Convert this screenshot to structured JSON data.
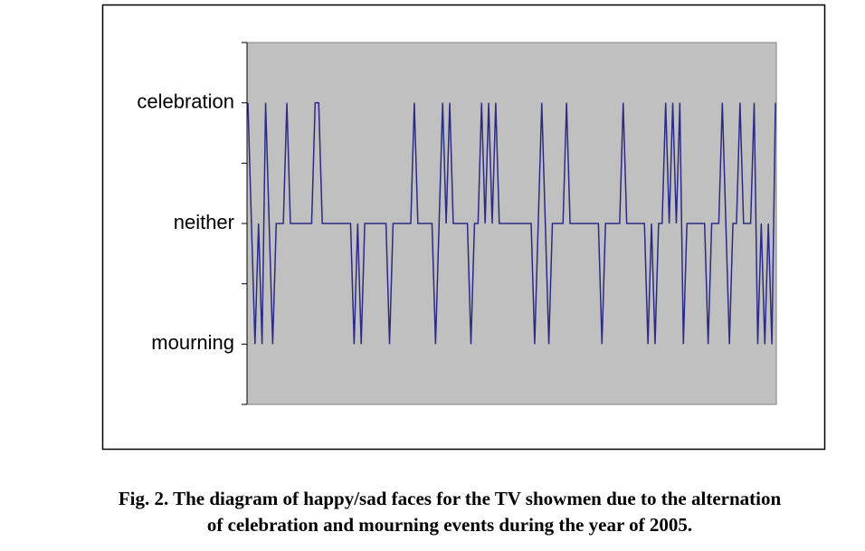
{
  "chart_data": {
    "type": "line",
    "values": [
      1,
      0,
      -1,
      0,
      -1,
      1,
      0,
      -1,
      0,
      0,
      0,
      1,
      0,
      0,
      0,
      0,
      0,
      0,
      0,
      1,
      1,
      0,
      0,
      0,
      0,
      0,
      0,
      0,
      0,
      0,
      -1,
      0,
      -1,
      0,
      0,
      0,
      0,
      0,
      0,
      0,
      -1,
      0,
      0,
      0,
      0,
      0,
      0,
      1,
      0,
      0,
      0,
      0,
      0,
      -1,
      0,
      1,
      0,
      1,
      0,
      0,
      0,
      0,
      0,
      -1,
      0,
      0,
      1,
      0,
      1,
      0,
      1,
      0,
      0,
      0,
      0,
      0,
      0,
      0,
      0,
      0,
      0,
      -1,
      0,
      1,
      0,
      -1,
      0,
      0,
      0,
      0,
      1,
      0,
      0,
      0,
      0,
      0,
      0,
      0,
      0,
      0,
      -1,
      0,
      0,
      0,
      0,
      0,
      1,
      0,
      0,
      0,
      0,
      0,
      0,
      -1,
      0,
      -1,
      0,
      0,
      1,
      0,
      1,
      0,
      1,
      -1,
      0,
      0,
      0,
      0,
      0,
      0,
      -1,
      0,
      0,
      0,
      1,
      0,
      -1,
      0,
      0,
      1,
      0,
      0,
      0,
      1,
      -1,
      0,
      -1,
      0,
      -1,
      1
    ],
    "color": "#2b2b86",
    "plot_background": "#c0c0c0",
    "ylim": [
      -1.5,
      1.5
    ],
    "yticks": [
      {
        "value": 1,
        "label": "celebration"
      },
      {
        "value": 0,
        "label": "neither"
      },
      {
        "value": -1,
        "label": "mourning"
      }
    ],
    "minor_yticks": [
      -1.5,
      -0.5,
      0.5,
      1.5
    ],
    "caption": [
      "Fig. 2. The diagram of happy/sad faces for the TV showmen due to the alternation",
      "of celebration and mourning events during the year of 2005."
    ]
  }
}
